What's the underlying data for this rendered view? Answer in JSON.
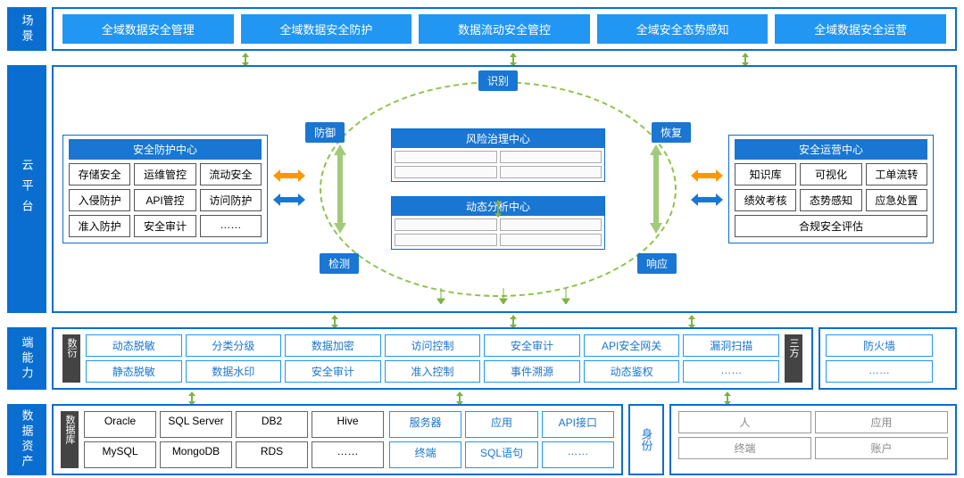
{
  "labels": {
    "scenario": "场景",
    "cloud": "云平台",
    "capability": "端能力",
    "asset": "数据资产"
  },
  "scenarios": [
    "全域数据安全管理",
    "全域数据安全防护",
    "数据流动安全管控",
    "全域安全态势感知",
    "全域数据安全运营"
  ],
  "protect": {
    "title": "安全防护中心",
    "items": [
      "存储安全",
      "运维管控",
      "流动安全",
      "入侵防护",
      "API管控",
      "访问防护",
      "准入防护",
      "安全审计",
      "……"
    ]
  },
  "ops": {
    "title": "安全运营中心",
    "items": [
      "知识库",
      "可视化",
      "工单流转",
      "绩效考核",
      "态势感知",
      "应急处置"
    ],
    "full": "合规安全评估"
  },
  "ellipse": {
    "tags": [
      "识别",
      "防御",
      "恢复",
      "检测",
      "响应"
    ],
    "risk": "风险治理中心",
    "dynamic": "动态分析中心"
  },
  "cap": {
    "side_l": "数衍",
    "side_r": "三方",
    "rows": [
      [
        "动态脱敏",
        "分类分级",
        "数据加密",
        "访问控制",
        "安全审计",
        "API安全网关",
        "漏洞扫描"
      ],
      [
        "静态脱敏",
        "数据水印",
        "安全审计",
        "准入控制",
        "事件溯源",
        "动态鉴权",
        "……"
      ]
    ],
    "mini": [
      "防火墙",
      "……"
    ]
  },
  "asset": {
    "side": "数据库",
    "db": [
      "Oracle",
      "SQL Server",
      "DB2",
      "Hive",
      "MySQL",
      "MongoDB",
      "RDS",
      "……"
    ],
    "srv": [
      "服务器",
      "应用",
      "API接口",
      "终端",
      "SQL语句",
      "……"
    ],
    "id_label": "身份",
    "id": [
      "人",
      "应用",
      "终端",
      "账户"
    ]
  },
  "colors": {
    "primary": "#0a6ed1",
    "accent": "#2196f3",
    "green": "#8bc34a",
    "orange": "#ff9800"
  }
}
